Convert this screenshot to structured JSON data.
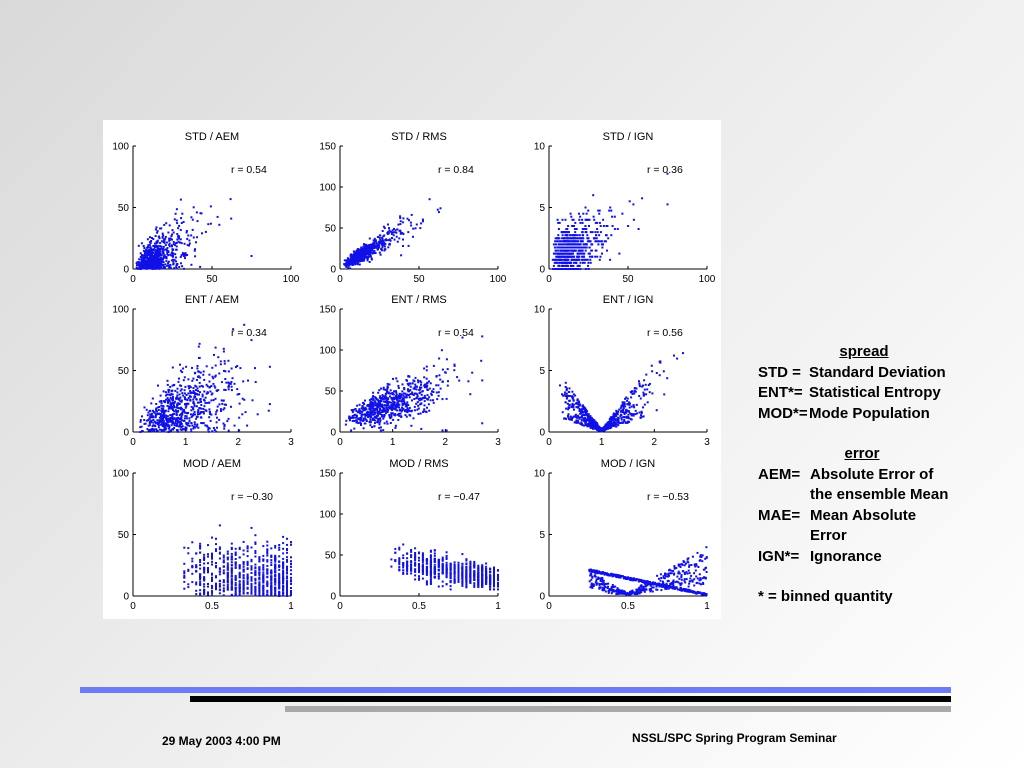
{
  "chart_data": [
    {
      "type": "scatter",
      "title": "STD / AEM",
      "xlim": [
        0,
        100
      ],
      "ylim": [
        0,
        100
      ],
      "xticks": [
        "0",
        "50",
        "100"
      ],
      "yticks": [
        "0",
        "50",
        "100"
      ],
      "annotation": "r = 0.54",
      "color": "#1010e8",
      "pattern": "std_aem",
      "n": 700
    },
    {
      "type": "scatter",
      "title": "STD / RMS",
      "xlim": [
        0,
        100
      ],
      "ylim": [
        0,
        150
      ],
      "xticks": [
        "0",
        "50",
        "100"
      ],
      "yticks": [
        "0",
        "50",
        "100",
        "150"
      ],
      "annotation": "r = 0.84",
      "color": "#1010e8",
      "pattern": "std_rms",
      "n": 700
    },
    {
      "type": "scatter",
      "title": "STD / IGN",
      "xlim": [
        0,
        100
      ],
      "ylim": [
        0,
        10
      ],
      "xticks": [
        "0",
        "50",
        "100"
      ],
      "yticks": [
        "0",
        "5",
        "10"
      ],
      "annotation": "r = 0.36",
      "color": "#1010e8",
      "pattern": "std_ign",
      "n": 700
    },
    {
      "type": "scatter",
      "title": "ENT / AEM",
      "xlim": [
        0,
        3
      ],
      "ylim": [
        0,
        100
      ],
      "xticks": [
        "0",
        "1",
        "2",
        "3"
      ],
      "yticks": [
        "0",
        "50",
        "100"
      ],
      "annotation": "r = 0.34",
      "color": "#1010e8",
      "pattern": "ent_aem",
      "n": 700
    },
    {
      "type": "scatter",
      "title": "ENT / RMS",
      "xlim": [
        0,
        3
      ],
      "ylim": [
        0,
        150
      ],
      "xticks": [
        "0",
        "1",
        "2",
        "3"
      ],
      "yticks": [
        "0",
        "50",
        "100",
        "150"
      ],
      "annotation": "r = 0.54",
      "color": "#1010e8",
      "pattern": "ent_rms",
      "n": 700
    },
    {
      "type": "scatter",
      "title": "ENT / IGN",
      "xlim": [
        0,
        3
      ],
      "ylim": [
        0,
        10
      ],
      "xticks": [
        "0",
        "1",
        "2",
        "3"
      ],
      "yticks": [
        "0",
        "5",
        "10"
      ],
      "annotation": "r = 0.56",
      "color": "#1010e8",
      "pattern": "ent_ign",
      "n": 700
    },
    {
      "type": "scatter",
      "title": "MOD / AEM",
      "xlim": [
        0,
        1
      ],
      "ylim": [
        0,
        100
      ],
      "xticks": [
        "0",
        "0.5",
        "1"
      ],
      "yticks": [
        "0",
        "50",
        "100"
      ],
      "annotation": "r = −0.30",
      "color": "#1010e8",
      "pattern": "mod_aem",
      "n": 800
    },
    {
      "type": "scatter",
      "title": "MOD / RMS",
      "xlim": [
        0,
        1
      ],
      "ylim": [
        0,
        150
      ],
      "xticks": [
        "0",
        "0.5",
        "1"
      ],
      "yticks": [
        "0",
        "50",
        "100",
        "150"
      ],
      "annotation": "r = −0.47",
      "color": "#1010e8",
      "pattern": "mod_rms",
      "n": 800
    },
    {
      "type": "scatter",
      "title": "MOD / IGN",
      "xlim": [
        0,
        1
      ],
      "ylim": [
        0,
        10
      ],
      "xticks": [
        "0",
        "0.5",
        "1"
      ],
      "yticks": [
        "0",
        "5",
        "10"
      ],
      "annotation": "r = −0.53",
      "color": "#1010e8",
      "pattern": "mod_ign",
      "n": 700
    }
  ],
  "legend": {
    "spread_heading": "spread",
    "spread_items": [
      {
        "key": "STD =",
        "value": "Standard Deviation"
      },
      {
        "key": "ENT*=",
        "value": "Statistical Entropy"
      },
      {
        "key": "MOD*=",
        "value": "Mode Population"
      }
    ],
    "error_heading": "error",
    "error_items": [
      {
        "key": "AEM=",
        "value": "Absolute Error of",
        "cont": "the ensemble Mean"
      },
      {
        "key": "MAE=",
        "value": "Mean Absolute",
        "cont": "Error"
      },
      {
        "key": "IGN*=",
        "value": "Ignorance"
      }
    ],
    "footnote": "* = binned quantity"
  },
  "footer": {
    "date": "29 May 2003 4:00 PM",
    "title": "NSSL/SPC Spring Program Seminar"
  },
  "colors": {
    "points": "#1010e8",
    "rule_blue": "#6b7cf4",
    "rule_black": "#000000",
    "rule_gray": "#a9a9a9"
  }
}
